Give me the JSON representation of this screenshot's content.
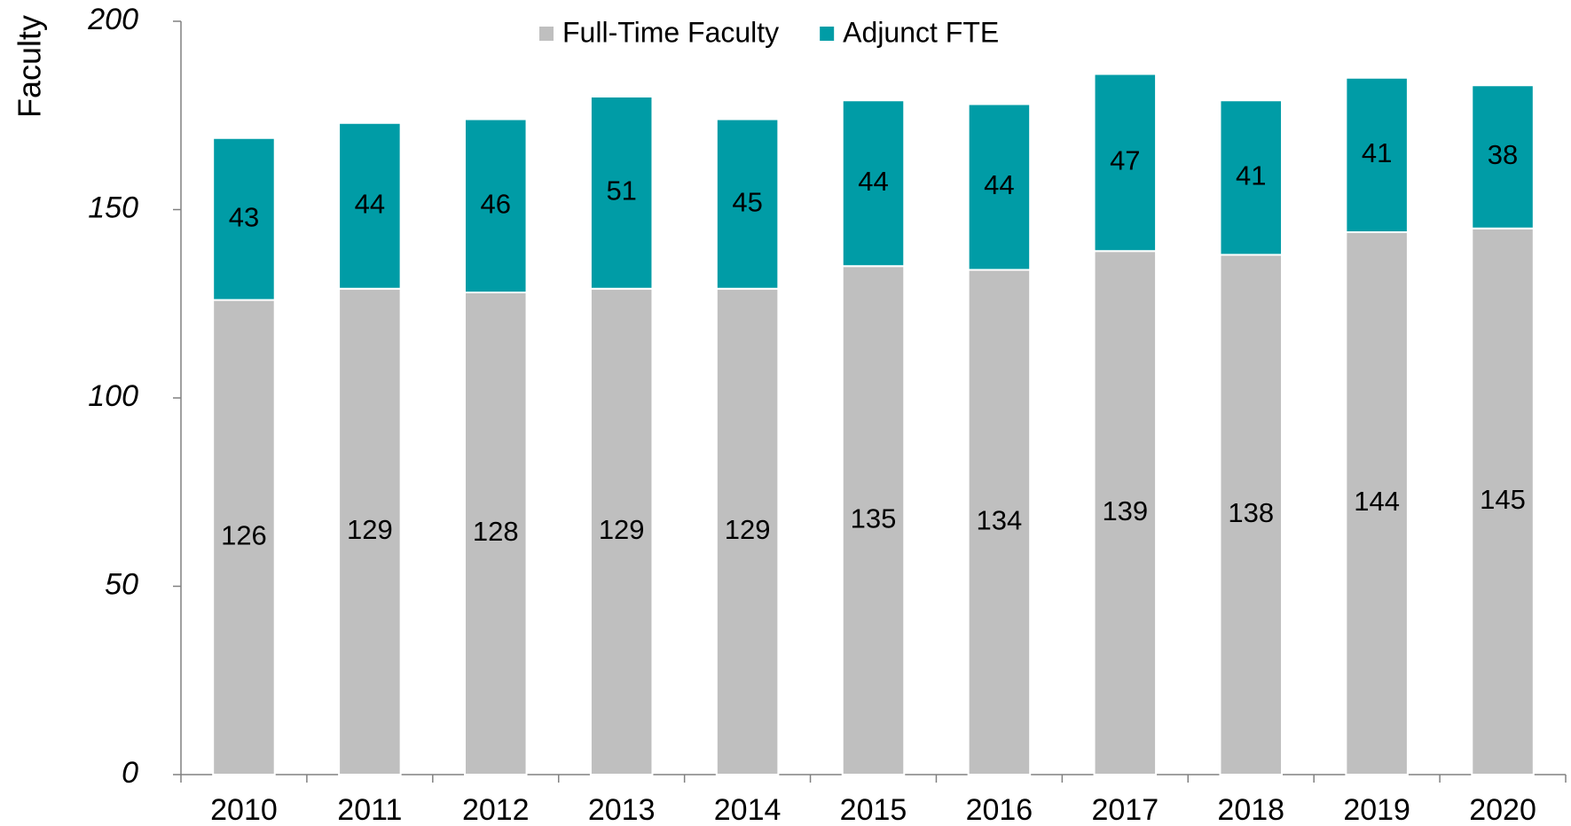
{
  "chart_data": {
    "type": "stacked_bar",
    "y_label": "Faculty",
    "categories": [
      "2010",
      "2011",
      "2012",
      "2013",
      "2014",
      "2015",
      "2016",
      "2017",
      "2018",
      "2019",
      "2020"
    ],
    "series": [
      {
        "name": "Full-Time Faculty",
        "color": "#bfbfbf",
        "values": [
          126,
          129,
          128,
          129,
          129,
          135,
          134,
          139,
          138,
          144,
          145
        ]
      },
      {
        "name": "Adjunct FTE",
        "color": "#009ca6",
        "values": [
          43,
          44,
          46,
          51,
          45,
          44,
          44,
          47,
          41,
          41,
          38
        ]
      }
    ],
    "ylim": [
      0,
      200
    ],
    "yticks": [
      0,
      50,
      100,
      150,
      200
    ],
    "legend": "top"
  }
}
